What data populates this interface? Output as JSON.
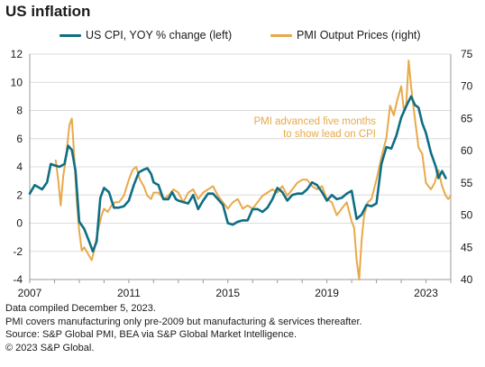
{
  "title": "US inflation",
  "legend": {
    "cpi_label": "US CPI, YOY % change (left)",
    "pmi_label": "PMI Output Prices (right)"
  },
  "colors": {
    "cpi": "#0e6e84",
    "pmi": "#e8a94a",
    "annotation": "#e8a94a",
    "grid": "#dcdcdc",
    "axis": "#9a9a9a"
  },
  "annotation": {
    "line1": "PMI advanced five months",
    "line2": "to show lead on CPI"
  },
  "notes": [
    "Data compiled December 5, 2023.",
    "PMI covers manufacturing only pre-2009 but manufacturing & services thereafter.",
    "Source: S&P Global PMI, BEA via S&P Global Market Intelligence.",
    "© 2023 S&P Global."
  ],
  "chart_data": {
    "type": "line",
    "title": "US inflation",
    "xlim": [
      2007.0,
      2024.0
    ],
    "x_ticks": [
      "2007",
      "2011",
      "2015",
      "2019",
      "2023"
    ],
    "y_left": {
      "lim": [
        -4,
        12
      ],
      "ticks": [
        "-4",
        "-2",
        "0",
        "2",
        "4",
        "6",
        "8",
        "10",
        "12"
      ]
    },
    "y_right": {
      "lim": [
        40,
        75
      ],
      "ticks": [
        "40",
        "45",
        "50",
        "55",
        "60",
        "65",
        "70",
        "75"
      ]
    },
    "grid": "horizontal",
    "legend_position": "top",
    "series": [
      {
        "name": "US CPI, YOY % change (left)",
        "axis": "left",
        "points": [
          [
            2007.0,
            2.1
          ],
          [
            2007.2,
            2.7
          ],
          [
            2007.5,
            2.4
          ],
          [
            2007.7,
            2.9
          ],
          [
            2007.85,
            4.2
          ],
          [
            2008.0,
            4.1
          ],
          [
            2008.2,
            4.0
          ],
          [
            2008.4,
            4.2
          ],
          [
            2008.55,
            5.5
          ],
          [
            2008.7,
            5.2
          ],
          [
            2008.85,
            3.7
          ],
          [
            2009.0,
            0.1
          ],
          [
            2009.2,
            -0.4
          ],
          [
            2009.4,
            -1.3
          ],
          [
            2009.55,
            -2.0
          ],
          [
            2009.7,
            -1.3
          ],
          [
            2009.85,
            1.8
          ],
          [
            2010.0,
            2.5
          ],
          [
            2010.2,
            2.2
          ],
          [
            2010.4,
            1.1
          ],
          [
            2010.6,
            1.1
          ],
          [
            2010.8,
            1.2
          ],
          [
            2011.0,
            1.6
          ],
          [
            2011.2,
            2.7
          ],
          [
            2011.4,
            3.6
          ],
          [
            2011.6,
            3.8
          ],
          [
            2011.75,
            3.9
          ],
          [
            2011.9,
            3.5
          ],
          [
            2012.0,
            2.9
          ],
          [
            2012.2,
            2.7
          ],
          [
            2012.4,
            1.7
          ],
          [
            2012.6,
            1.7
          ],
          [
            2012.75,
            2.2
          ],
          [
            2012.9,
            1.7
          ],
          [
            2013.0,
            1.6
          ],
          [
            2013.2,
            1.5
          ],
          [
            2013.4,
            1.4
          ],
          [
            2013.6,
            2.0
          ],
          [
            2013.8,
            1.0
          ],
          [
            2014.0,
            1.6
          ],
          [
            2014.2,
            2.1
          ],
          [
            2014.4,
            2.1
          ],
          [
            2014.6,
            1.7
          ],
          [
            2014.8,
            1.3
          ],
          [
            2015.0,
            0.0
          ],
          [
            2015.2,
            -0.1
          ],
          [
            2015.4,
            0.1
          ],
          [
            2015.6,
            0.2
          ],
          [
            2015.8,
            0.2
          ],
          [
            2016.0,
            1.0
          ],
          [
            2016.2,
            1.0
          ],
          [
            2016.4,
            0.8
          ],
          [
            2016.6,
            1.1
          ],
          [
            2016.8,
            1.7
          ],
          [
            2017.0,
            2.5
          ],
          [
            2017.2,
            2.2
          ],
          [
            2017.4,
            1.6
          ],
          [
            2017.6,
            2.0
          ],
          [
            2017.8,
            2.1
          ],
          [
            2018.0,
            2.1
          ],
          [
            2018.2,
            2.4
          ],
          [
            2018.4,
            2.9
          ],
          [
            2018.6,
            2.7
          ],
          [
            2018.8,
            2.2
          ],
          [
            2019.0,
            1.6
          ],
          [
            2019.2,
            2.0
          ],
          [
            2019.4,
            1.7
          ],
          [
            2019.6,
            1.8
          ],
          [
            2019.8,
            2.1
          ],
          [
            2020.0,
            2.3
          ],
          [
            2020.2,
            0.3
          ],
          [
            2020.4,
            0.6
          ],
          [
            2020.6,
            1.3
          ],
          [
            2020.8,
            1.2
          ],
          [
            2021.0,
            1.4
          ],
          [
            2021.2,
            4.2
          ],
          [
            2021.4,
            5.4
          ],
          [
            2021.6,
            5.3
          ],
          [
            2021.8,
            6.2
          ],
          [
            2022.0,
            7.5
          ],
          [
            2022.2,
            8.3
          ],
          [
            2022.4,
            9.0
          ],
          [
            2022.55,
            8.4
          ],
          [
            2022.7,
            8.2
          ],
          [
            2022.85,
            7.1
          ],
          [
            2023.0,
            6.4
          ],
          [
            2023.2,
            5.0
          ],
          [
            2023.4,
            4.0
          ],
          [
            2023.5,
            3.2
          ],
          [
            2023.65,
            3.7
          ],
          [
            2023.8,
            3.2
          ]
        ]
      },
      {
        "name": "PMI Output Prices (right)",
        "axis": "right",
        "points": [
          [
            2008.05,
            58.5
          ],
          [
            2008.15,
            55.5
          ],
          [
            2008.25,
            51.5
          ],
          [
            2008.35,
            56.0
          ],
          [
            2008.45,
            58.5
          ],
          [
            2008.6,
            64.0
          ],
          [
            2008.7,
            65.0
          ],
          [
            2008.8,
            59.0
          ],
          [
            2008.9,
            52.0
          ],
          [
            2009.0,
            47.5
          ],
          [
            2009.1,
            44.5
          ],
          [
            2009.2,
            45.0
          ],
          [
            2009.35,
            44.0
          ],
          [
            2009.5,
            43.0
          ],
          [
            2009.6,
            44.5
          ],
          [
            2009.75,
            47.5
          ],
          [
            2009.9,
            50.0
          ],
          [
            2010.0,
            51.0
          ],
          [
            2010.15,
            50.5
          ],
          [
            2010.3,
            51.5
          ],
          [
            2010.45,
            52.0
          ],
          [
            2010.6,
            52.0
          ],
          [
            2010.8,
            53.0
          ],
          [
            2011.0,
            55.5
          ],
          [
            2011.15,
            57.0
          ],
          [
            2011.3,
            57.5
          ],
          [
            2011.45,
            55.5
          ],
          [
            2011.6,
            54.5
          ],
          [
            2011.75,
            53.0
          ],
          [
            2011.9,
            52.5
          ],
          [
            2012.0,
            53.5
          ],
          [
            2012.2,
            53.5
          ],
          [
            2012.4,
            52.5
          ],
          [
            2012.6,
            53.0
          ],
          [
            2012.8,
            54.0
          ],
          [
            2013.0,
            53.5
          ],
          [
            2013.2,
            52.0
          ],
          [
            2013.4,
            53.5
          ],
          [
            2013.6,
            54.0
          ],
          [
            2013.8,
            52.5
          ],
          [
            2014.0,
            53.5
          ],
          [
            2014.2,
            54.0
          ],
          [
            2014.4,
            54.5
          ],
          [
            2014.6,
            53.0
          ],
          [
            2014.8,
            52.0
          ],
          [
            2015.0,
            51.0
          ],
          [
            2015.2,
            52.0
          ],
          [
            2015.4,
            52.5
          ],
          [
            2015.6,
            51.0
          ],
          [
            2015.8,
            51.5
          ],
          [
            2016.0,
            51.0
          ],
          [
            2016.2,
            52.0
          ],
          [
            2016.4,
            53.0
          ],
          [
            2016.6,
            53.5
          ],
          [
            2016.8,
            54.0
          ],
          [
            2017.0,
            53.5
          ],
          [
            2017.2,
            54.5
          ],
          [
            2017.4,
            53.0
          ],
          [
            2017.6,
            54.0
          ],
          [
            2017.8,
            55.0
          ],
          [
            2018.0,
            55.5
          ],
          [
            2018.2,
            55.5
          ],
          [
            2018.4,
            54.5
          ],
          [
            2018.6,
            54.0
          ],
          [
            2018.8,
            54.5
          ],
          [
            2019.0,
            52.5
          ],
          [
            2019.2,
            52.0
          ],
          [
            2019.4,
            50.0
          ],
          [
            2019.6,
            51.0
          ],
          [
            2019.8,
            52.0
          ],
          [
            2020.0,
            49.0
          ],
          [
            2020.1,
            48.0
          ],
          [
            2020.2,
            43.0
          ],
          [
            2020.3,
            40.0
          ],
          [
            2020.4,
            46.0
          ],
          [
            2020.5,
            50.0
          ],
          [
            2020.65,
            52.0
          ],
          [
            2020.8,
            52.5
          ],
          [
            2021.0,
            55.5
          ],
          [
            2021.2,
            59.0
          ],
          [
            2021.4,
            62.0
          ],
          [
            2021.55,
            67.0
          ],
          [
            2021.7,
            65.5
          ],
          [
            2021.85,
            68.0
          ],
          [
            2022.0,
            70.0
          ],
          [
            2022.1,
            66.5
          ],
          [
            2022.2,
            67.0
          ],
          [
            2022.3,
            74.0
          ],
          [
            2022.4,
            70.0
          ],
          [
            2022.55,
            65.0
          ],
          [
            2022.7,
            60.5
          ],
          [
            2022.85,
            59.5
          ],
          [
            2023.0,
            55.0
          ],
          [
            2023.2,
            54.0
          ],
          [
            2023.35,
            55.0
          ],
          [
            2023.5,
            57.0
          ],
          [
            2023.65,
            54.5
          ],
          [
            2023.8,
            53.0
          ],
          [
            2023.9,
            52.5
          ],
          [
            2024.0,
            53.0
          ]
        ]
      }
    ],
    "annotations": [
      {
        "text": "PMI advanced five months to show lead on CPI"
      }
    ]
  }
}
